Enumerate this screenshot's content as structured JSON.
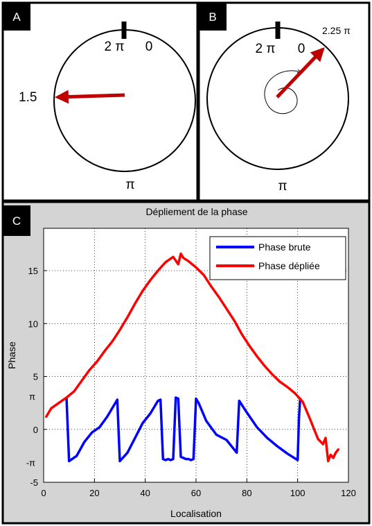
{
  "panel_a": {
    "letter": "A",
    "label_2pi": "2 π",
    "label_0": "0",
    "label_pi": "π",
    "value_label": "1.5"
  },
  "panel_b": {
    "letter": "B",
    "label_2pi": "2 π",
    "label_0": "0",
    "label_pi": "π",
    "value_label": "2.25 π"
  },
  "panel_c": {
    "letter": "C"
  },
  "colors": {
    "arrow": "#c00000",
    "raw_phase": "#0000ff",
    "unwrapped_phase": "#ff0000",
    "chart_bg": "#d4d4d4",
    "plot_bg": "#ffffff"
  },
  "chart_data": {
    "type": "line",
    "title": "Dépliement de la phase",
    "xlabel": "Localisation",
    "ylabel": "Phase",
    "xlim": [
      0,
      120
    ],
    "ylim": [
      -5,
      19
    ],
    "grid": true,
    "legend_position": "top-right",
    "x_ticks": [
      "0",
      "20",
      "40",
      "60",
      "80",
      "100",
      "120"
    ],
    "x_tick_values": [
      0,
      20,
      40,
      60,
      80,
      100,
      120
    ],
    "y_ticks": [
      "-5",
      "0",
      "5",
      "10",
      "15"
    ],
    "y_tick_values": [
      -5,
      0,
      5,
      10,
      15
    ],
    "y_pi_labels": [
      {
        "label": "π",
        "value": 3.14
      },
      {
        "label": "-π",
        "value": -3.14
      }
    ],
    "series": [
      {
        "name": "Phase brute",
        "x": [
          9,
          10,
          13,
          16,
          19,
          22,
          25,
          29,
          30,
          33,
          36,
          39,
          42,
          45,
          46,
          47,
          48,
          49,
          50,
          51,
          52,
          53,
          54,
          55,
          56,
          57,
          58,
          59,
          60,
          61,
          64,
          68,
          72,
          76,
          77,
          80,
          84,
          88,
          92,
          96,
          100,
          100.5,
          101
        ],
        "y": [
          3.0,
          -3.0,
          -2.5,
          -1.2,
          -0.3,
          0.2,
          1.2,
          2.8,
          -3.0,
          -2.2,
          -0.8,
          0.6,
          1.5,
          2.7,
          2.8,
          -2.8,
          -2.9,
          -2.8,
          -2.9,
          -2.8,
          3.0,
          2.9,
          -2.6,
          -2.7,
          -2.8,
          -2.8,
          -2.9,
          -2.8,
          2.9,
          2.5,
          0.8,
          -0.5,
          -1.0,
          -2.2,
          2.7,
          1.6,
          0.2,
          -0.8,
          -1.6,
          -2.3,
          -2.9,
          1.0,
          2.9
        ]
      },
      {
        "name": "Phase dépliée",
        "x": [
          1,
          3,
          6,
          9,
          12,
          15,
          18,
          21,
          24,
          27,
          30,
          33,
          36,
          39,
          42,
          45,
          48,
          51,
          53,
          54,
          55,
          57,
          60,
          63,
          66,
          69,
          72,
          75,
          78,
          81,
          84,
          87,
          90,
          93,
          96,
          99,
          102,
          105,
          108,
          110,
          111,
          112,
          113,
          114,
          115,
          116
        ],
        "y": [
          1.2,
          2.0,
          2.5,
          3.0,
          3.6,
          4.6,
          5.6,
          6.4,
          7.4,
          8.3,
          9.4,
          10.6,
          11.9,
          13.1,
          14.1,
          15.0,
          15.8,
          16.3,
          15.6,
          16.6,
          16.2,
          15.9,
          15.3,
          14.6,
          13.5,
          12.5,
          11.4,
          10.3,
          9.0,
          7.9,
          6.9,
          6.0,
          5.2,
          4.5,
          4.0,
          3.4,
          2.6,
          0.9,
          -0.9,
          -1.4,
          -0.8,
          -3.0,
          -2.4,
          -2.7,
          -2.2,
          -1.9
        ]
      }
    ]
  }
}
